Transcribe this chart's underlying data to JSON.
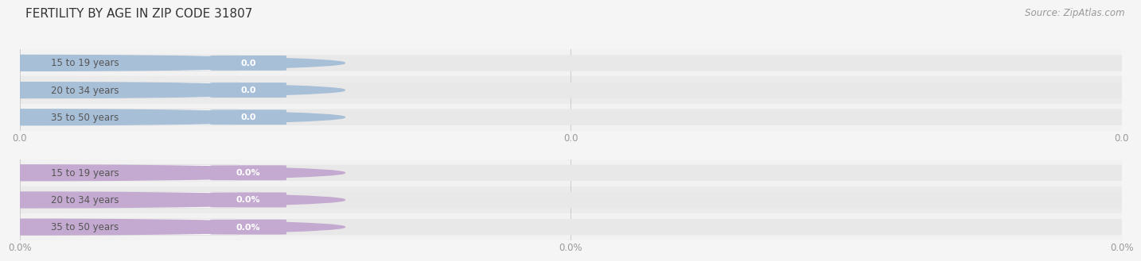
{
  "title": "FERTILITY BY AGE IN ZIP CODE 31807",
  "source": "Source: ZipAtlas.com",
  "sections": [
    {
      "categories": [
        "15 to 19 years",
        "20 to 34 years",
        "35 to 50 years"
      ],
      "values": [
        0.0,
        0.0,
        0.0
      ],
      "bar_color": "#a8bfd8",
      "pill_bg": "#ffffff",
      "value_badge_color": "#a8bfd8",
      "text_color": "#555555",
      "value_text_color": "#ffffff",
      "tick_labels": [
        "0.0",
        "0.0",
        "0.0"
      ]
    },
    {
      "categories": [
        "15 to 19 years",
        "20 to 34 years",
        "35 to 50 years"
      ],
      "values": [
        0.0,
        0.0,
        0.0
      ],
      "bar_color": "#c4aad0",
      "pill_bg": "#ffffff",
      "value_badge_color": "#c4aad0",
      "text_color": "#555555",
      "value_text_color": "#ffffff",
      "tick_labels": [
        "0.0%",
        "0.0%",
        "0.0%"
      ]
    }
  ],
  "bg_color": "#f5f5f5",
  "bar_track_color": "#e8e8e8",
  "separator_color": "#dddddd",
  "fig_width": 14.06,
  "fig_height": 3.3,
  "title_fontsize": 11,
  "label_fontsize": 8.5,
  "tick_fontsize": 8.5,
  "source_fontsize": 8.5,
  "bar_height": 0.62
}
